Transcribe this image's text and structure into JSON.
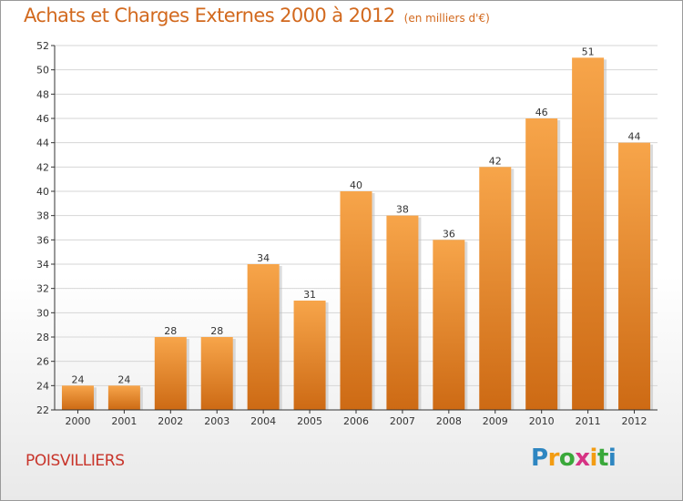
{
  "header": {
    "title": "Achats et Charges Externes 2000 à 2012",
    "subtitle": "(en milliers d'€)"
  },
  "footer": {
    "commune": "POISVILLIERS",
    "logo": {
      "letters": [
        "P",
        "r",
        "o",
        "x",
        "i",
        "t",
        "i"
      ],
      "colors": [
        "#2e86c1",
        "#f39c12",
        "#3aa83a",
        "#d63384",
        "#f39c12",
        "#3aa83a",
        "#2e86c1"
      ]
    }
  },
  "colors": {
    "bar_light": "#f7a54a",
    "bar_dark": "#cd6a14",
    "grid": "#d6d6d6",
    "axis": "#333333"
  },
  "chart_data": {
    "type": "bar",
    "title": "Achats et Charges Externes 2000 à 2012",
    "subtitle": "(en milliers d'€)",
    "categories": [
      "2000",
      "2001",
      "2002",
      "2003",
      "2004",
      "2005",
      "2006",
      "2007",
      "2008",
      "2009",
      "2010",
      "2011",
      "2012"
    ],
    "values": [
      24,
      24,
      28,
      28,
      34,
      31,
      40,
      38,
      36,
      42,
      46,
      51,
      44
    ],
    "xlabel": "",
    "ylabel": "",
    "ylim": [
      22,
      52
    ],
    "yticks": [
      22,
      24,
      26,
      28,
      30,
      32,
      34,
      36,
      38,
      40,
      42,
      44,
      46,
      48,
      50,
      52
    ],
    "grid": true,
    "data_labels": true
  }
}
